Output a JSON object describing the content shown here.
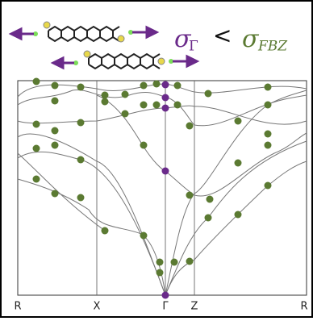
{
  "equation": {
    "left": "σ",
    "left_sub": "Γ",
    "relation": "<",
    "right": "σ",
    "right_sub": "FBZ"
  },
  "kpath": {
    "labels": [
      "R",
      "X",
      "Γ",
      "Z",
      "R"
    ]
  }
}
